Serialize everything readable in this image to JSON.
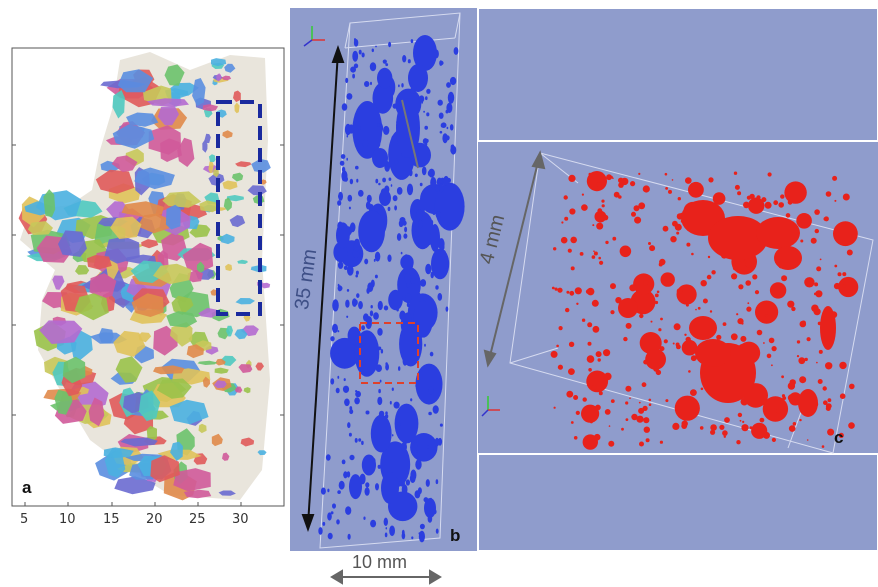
{
  "panels": {
    "a": {
      "label": "a",
      "x_ticks": [
        "5",
        "10",
        "15",
        "20",
        "25",
        "30"
      ]
    },
    "b": {
      "label": "b",
      "dimension_vertical": "35 mm",
      "dimension_horizontal": "10 mm"
    },
    "c": {
      "label": "c",
      "dimension": "4 mm"
    }
  },
  "colors": {
    "background_3d": "#8f9ccc",
    "voids_b": "#2b3ee0",
    "voids_c": "#e8221b",
    "roi_box_a": "#1a2a9e",
    "roi_box_b": "#e0402a"
  }
}
